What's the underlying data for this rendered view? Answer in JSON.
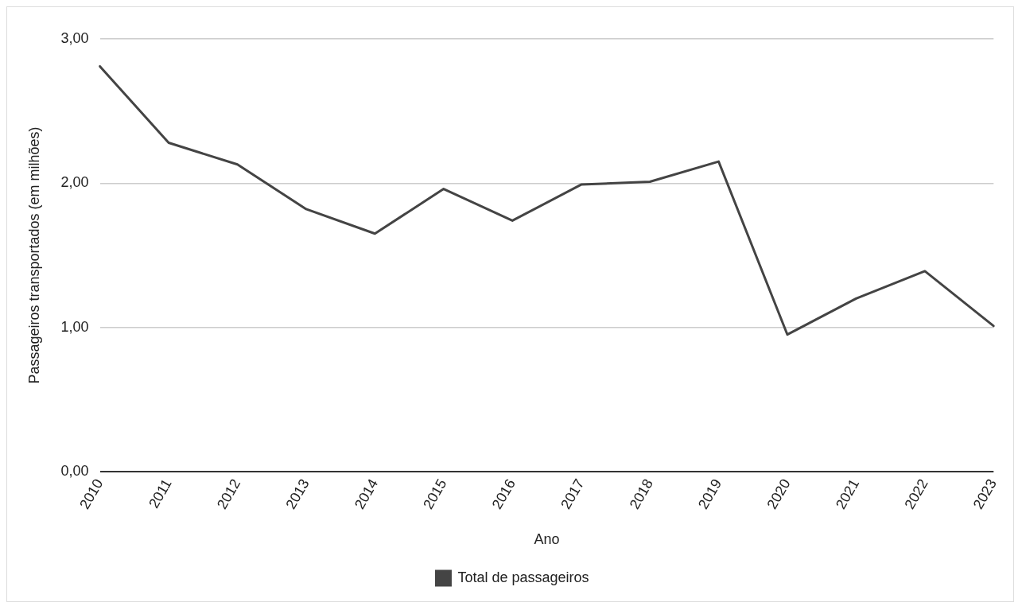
{
  "chart_data": {
    "type": "line",
    "xlabel": "Ano",
    "ylabel": "Passageiros transportados (em milhões)",
    "categories": [
      "2010",
      "2011",
      "2012",
      "2013",
      "2014",
      "2015",
      "2016",
      "2017",
      "2018",
      "2019",
      "2020",
      "2021",
      "2022",
      "2023"
    ],
    "series": [
      {
        "name": "Total de passageiros",
        "color": "#444444",
        "values": [
          2.81,
          2.28,
          2.13,
          1.82,
          1.65,
          1.96,
          1.74,
          1.99,
          2.01,
          2.15,
          0.95,
          1.2,
          1.39,
          1.01
        ]
      }
    ],
    "ylim": [
      0,
      3
    ],
    "yticks": [
      {
        "value": 0,
        "label": "0,00"
      },
      {
        "value": 1,
        "label": "1,00"
      },
      {
        "value": 2,
        "label": "2,00"
      },
      {
        "value": 3,
        "label": "3,00"
      }
    ],
    "grid": "y",
    "legend": "bottom",
    "marker": "none",
    "line_style": "solid"
  }
}
